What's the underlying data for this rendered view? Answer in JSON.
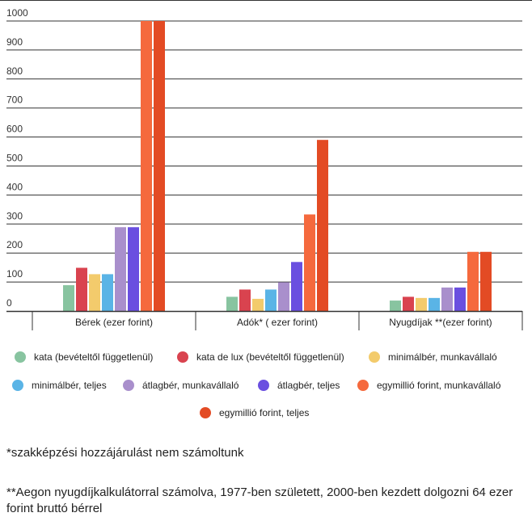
{
  "chart_data": {
    "type": "bar",
    "categories": [
      "Bérek (ezer forint)",
      "Adók* ( ezer forint)",
      "Nyugdíjak **(ezer forint)"
    ],
    "ylim": [
      0,
      1000
    ],
    "yticks": [
      0,
      100,
      200,
      300,
      400,
      500,
      600,
      700,
      800,
      900,
      1000
    ],
    "grid": true,
    "legend_position": "bottom",
    "series": [
      {
        "name": "kata (bevételtől függetlenül)",
        "color": "#88c4a0",
        "values": [
          89,
          49,
          36
        ]
      },
      {
        "name": "kata de lux (bevételtől függetlenül)",
        "color": "#d9434f",
        "values": [
          149,
          74,
          49
        ]
      },
      {
        "name": "minimálbér, munkavállaló",
        "color": "#f3cb6c",
        "values": [
          127,
          42,
          45
        ]
      },
      {
        "name": "minimálbér, teljes",
        "color": "#5ab4e6",
        "values": [
          127,
          74,
          45
        ]
      },
      {
        "name": "átlagbér, munkavállaló",
        "color": "#a98fcc",
        "values": [
          289,
          99,
          81
        ]
      },
      {
        "name": "átlagbér, teljes",
        "color": "#6a4fe0",
        "values": [
          289,
          169,
          81
        ]
      },
      {
        "name": "egymillió forint, munkavállaló",
        "color": "#f5693d",
        "values": [
          1000,
          333,
          204
        ]
      },
      {
        "name": "egymillió forint, teljes",
        "color": "#e34b24",
        "values": [
          1000,
          590,
          204
        ]
      }
    ]
  },
  "notes": {
    "note1": "*szakképzési hozzájárulást nem számoltunk",
    "note2": "**Aegon nyugdíjkalkulátorral számolva, 1977-ben született, 2000-ben kezdett dolgozni 64 ezer forint bruttó bérrel"
  }
}
